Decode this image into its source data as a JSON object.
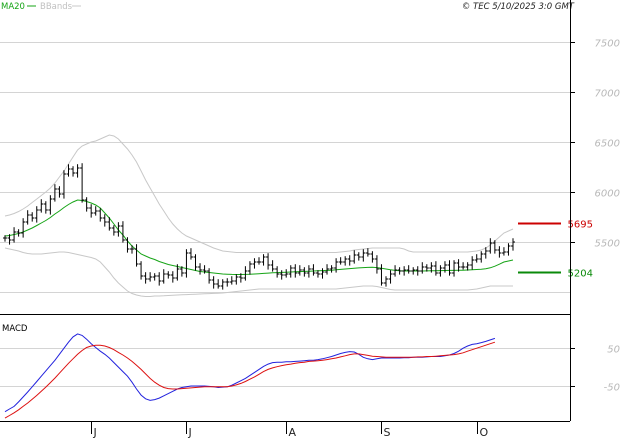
{
  "header": {
    "legend_ma": "MA20",
    "legend_bbands": "BBands",
    "copyright": "© TEC 5/10/2025 3:0 GMT"
  },
  "colors": {
    "ma": "#16a416",
    "bbands": "#c8c8c8",
    "price": "#000000",
    "macd": "#2222dd",
    "signal": "#dd1111",
    "marker_resistance": "#cc0000",
    "marker_support": "#0a8a0a",
    "grid": "#d4d4d4",
    "axis_text": "#b8b8b8"
  },
  "chart_data": [
    {
      "type": "line",
      "name": "price",
      "ylim": [
        4800,
        7900
      ],
      "yticks": [
        5500,
        6000,
        6500,
        7000,
        7500
      ],
      "ytick_labels": [
        "5500",
        "6000",
        "6500",
        "7000",
        "7500"
      ],
      "grid": true,
      "legend_placement": "top-left",
      "x_labels": [
        "J",
        "J",
        "A",
        "S",
        "O"
      ],
      "x_label_index": [
        19,
        40,
        62,
        83,
        104
      ],
      "price": [
        5540,
        5520,
        5600,
        5590,
        5700,
        5770,
        5740,
        5820,
        5880,
        5820,
        5930,
        6030,
        5980,
        6180,
        6230,
        6190,
        6240,
        5920,
        5840,
        5790,
        5810,
        5740,
        5700,
        5640,
        5600,
        5660,
        5520,
        5430,
        5430,
        5280,
        5160,
        5130,
        5150,
        5160,
        5110,
        5180,
        5170,
        5140,
        5230,
        5190,
        5390,
        5350,
        5250,
        5220,
        5210,
        5120,
        5080,
        5060,
        5100,
        5100,
        5110,
        5150,
        5140,
        5210,
        5280,
        5300,
        5300,
        5350,
        5270,
        5230,
        5180,
        5170,
        5180,
        5240,
        5190,
        5220,
        5190,
        5230,
        5190,
        5180,
        5200,
        5230,
        5240,
        5300,
        5300,
        5330,
        5310,
        5370,
        5350,
        5390,
        5380,
        5330,
        5230,
        5090,
        5130,
        5180,
        5220,
        5210,
        5220,
        5210,
        5220,
        5210,
        5250,
        5240,
        5260,
        5190,
        5240,
        5270,
        5190,
        5290,
        5250,
        5250,
        5270,
        5320,
        5330,
        5380,
        5410,
        5490,
        5420,
        5390,
        5400,
        5460,
        5500
      ],
      "ma20": [
        5560,
        5565,
        5575,
        5585,
        5600,
        5620,
        5640,
        5665,
        5690,
        5715,
        5745,
        5780,
        5810,
        5845,
        5875,
        5900,
        5920,
        5915,
        5905,
        5890,
        5870,
        5840,
        5790,
        5740,
        5680,
        5620,
        5570,
        5510,
        5460,
        5420,
        5380,
        5360,
        5340,
        5325,
        5305,
        5290,
        5275,
        5265,
        5255,
        5245,
        5235,
        5225,
        5215,
        5205,
        5200,
        5195,
        5190,
        5185,
        5180,
        5178,
        5176,
        5175,
        5175,
        5176,
        5177,
        5180,
        5183,
        5186,
        5189,
        5192,
        5194,
        5196,
        5198,
        5200,
        5202,
        5204,
        5206,
        5208,
        5210,
        5212,
        5214,
        5216,
        5218,
        5222,
        5226,
        5230,
        5234,
        5238,
        5241,
        5244,
        5246,
        5247,
        5244,
        5238,
        5230,
        5222,
        5216,
        5212,
        5210,
        5210,
        5210,
        5210,
        5210,
        5211,
        5212,
        5213,
        5214,
        5215,
        5216,
        5216,
        5217,
        5218,
        5220,
        5222,
        5225,
        5228,
        5232,
        5242,
        5258,
        5278,
        5300,
        5310,
        5320
      ],
      "bb_upper": [
        5760,
        5770,
        5785,
        5805,
        5830,
        5860,
        5895,
        5930,
        5965,
        6000,
        6040,
        6090,
        6150,
        6210,
        6280,
        6350,
        6420,
        6460,
        6480,
        6500,
        6510,
        6530,
        6550,
        6570,
        6560,
        6530,
        6480,
        6430,
        6370,
        6300,
        6210,
        6120,
        6040,
        5960,
        5880,
        5810,
        5740,
        5680,
        5630,
        5590,
        5560,
        5540,
        5520,
        5500,
        5480,
        5460,
        5440,
        5425,
        5410,
        5405,
        5400,
        5395,
        5395,
        5395,
        5395,
        5395,
        5395,
        5395,
        5395,
        5395,
        5395,
        5395,
        5395,
        5395,
        5395,
        5395,
        5395,
        5395,
        5395,
        5395,
        5395,
        5395,
        5395,
        5395,
        5400,
        5405,
        5410,
        5420,
        5425,
        5430,
        5435,
        5440,
        5440,
        5440,
        5440,
        5440,
        5440,
        5440,
        5430,
        5410,
        5400,
        5400,
        5400,
        5400,
        5400,
        5400,
        5400,
        5400,
        5400,
        5400,
        5400,
        5400,
        5400,
        5405,
        5410,
        5420,
        5440,
        5470,
        5510,
        5550,
        5590,
        5610,
        5630
      ],
      "bb_lower": [
        5440,
        5430,
        5420,
        5410,
        5395,
        5385,
        5380,
        5380,
        5380,
        5385,
        5390,
        5395,
        5400,
        5400,
        5395,
        5385,
        5375,
        5365,
        5355,
        5345,
        5330,
        5300,
        5250,
        5200,
        5140,
        5090,
        5050,
        5010,
        4985,
        4970,
        4960,
        4955,
        4955,
        4960,
        4960,
        4962,
        4965,
        4968,
        4970,
        4972,
        4974,
        4976,
        4978,
        4980,
        4982,
        4984,
        4986,
        4988,
        4990,
        4995,
        5000,
        5005,
        5010,
        5015,
        5020,
        5025,
        5030,
        5030,
        5030,
        5030,
        5030,
        5030,
        5030,
        5030,
        5030,
        5030,
        5030,
        5030,
        5030,
        5030,
        5030,
        5030,
        5030,
        5030,
        5035,
        5040,
        5045,
        5050,
        5055,
        5060,
        5060,
        5060,
        5055,
        5045,
        5035,
        5025,
        5020,
        5020,
        5020,
        5020,
        5020,
        5020,
        5020,
        5020,
        5020,
        5020,
        5020,
        5020,
        5020,
        5020,
        5020,
        5020,
        5020,
        5025,
        5030,
        5040,
        5050,
        5060,
        5060,
        5060,
        5060,
        5060,
        5060
      ],
      "markers": [
        {
          "label": "5695",
          "value": 5695,
          "color_key": "marker_resistance"
        },
        {
          "label": "5204",
          "value": 5204,
          "color_key": "marker_support"
        }
      ]
    },
    {
      "type": "line",
      "name": "MACD",
      "ylim": [
        -140,
        130
      ],
      "yticks": [
        50,
        -50
      ],
      "ytick_labels": [
        "50",
        "-50"
      ],
      "grid": true,
      "legend_placement": "top-left",
      "series": [
        {
          "name": "MACD",
          "color_key": "macd",
          "values": [
            -118,
            -111,
            -104,
            -92,
            -79,
            -66,
            -52,
            -38,
            -24,
            -10,
            4,
            18,
            34,
            50,
            66,
            80,
            88,
            84,
            74,
            62,
            52,
            42,
            34,
            24,
            12,
            0,
            -12,
            -24,
            -40,
            -58,
            -74,
            -84,
            -88,
            -86,
            -82,
            -76,
            -70,
            -64,
            -58,
            -54,
            -52,
            -50,
            -50,
            -50,
            -50,
            -51,
            -52,
            -54,
            -53,
            -52,
            -48,
            -42,
            -36,
            -30,
            -22,
            -14,
            -6,
            2,
            8,
            12,
            13,
            13,
            14,
            14,
            15,
            16,
            17,
            18,
            18,
            20,
            22,
            25,
            28,
            32,
            36,
            39,
            41,
            40,
            34,
            26,
            22,
            20,
            22,
            24,
            24,
            24,
            24,
            24,
            25,
            25,
            26,
            26,
            26,
            27,
            28,
            28,
            28,
            30,
            32,
            36,
            42,
            50,
            56,
            60,
            62,
            65,
            68,
            72,
            76
          ]
        },
        {
          "name": "Signal",
          "color_key": "signal",
          "values": [
            -135,
            -128,
            -121,
            -113,
            -104,
            -95,
            -85,
            -75,
            -64,
            -53,
            -41,
            -29,
            -16,
            -3,
            10,
            22,
            34,
            44,
            52,
            56,
            58,
            58,
            56,
            52,
            46,
            39,
            32,
            24,
            15,
            5,
            -6,
            -18,
            -30,
            -40,
            -48,
            -54,
            -57,
            -58,
            -58,
            -57,
            -56,
            -55,
            -54,
            -53,
            -52,
            -52,
            -52,
            -52,
            -52,
            -52,
            -50,
            -47,
            -43,
            -38,
            -32,
            -26,
            -19,
            -12,
            -6,
            -2,
            1,
            4,
            6,
            8,
            10,
            12,
            13,
            15,
            16,
            17,
            18,
            20,
            22,
            24,
            27,
            30,
            33,
            35,
            35,
            33,
            31,
            29,
            28,
            27,
            26,
            26,
            26,
            26,
            26,
            26,
            26,
            27,
            27,
            28,
            28,
            29,
            30,
            31,
            32,
            33,
            35,
            38,
            42,
            46,
            50,
            54,
            58,
            62,
            66
          ]
        }
      ]
    }
  ]
}
